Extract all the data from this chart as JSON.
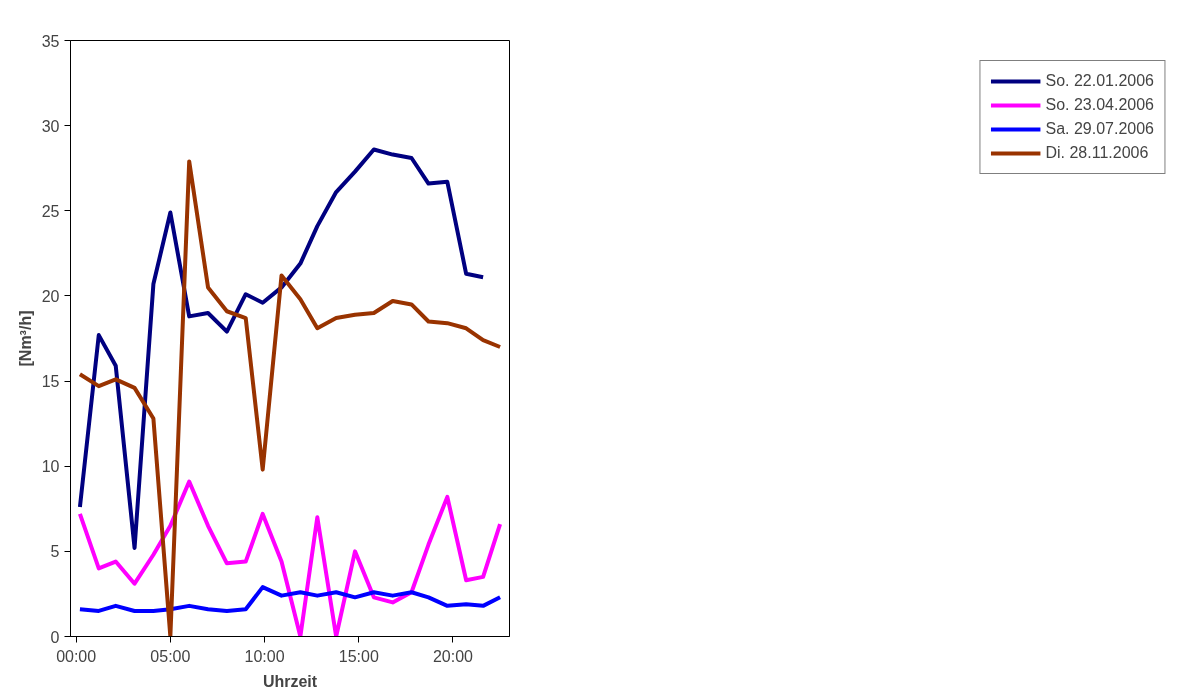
{
  "chart_data": {
    "type": "line",
    "xlabel": "Uhrzeit",
    "ylabel": "[Nm³/h]",
    "x": [
      0.2,
      1.2,
      2.1,
      3.1,
      4.1,
      5.0,
      6.0,
      7.0,
      8.0,
      9.0,
      9.9,
      10.9,
      11.9,
      12.8,
      13.8,
      14.8,
      15.8,
      16.8,
      17.8,
      18.7,
      19.7,
      20.7,
      21.6,
      22.5
    ],
    "xlim": [
      -0.3,
      23.0
    ],
    "xticks": [
      {
        "value": 0,
        "label": "00:00"
      },
      {
        "value": 5,
        "label": "05:00"
      },
      {
        "value": 10,
        "label": "10:00"
      },
      {
        "value": 15,
        "label": "15:00"
      },
      {
        "value": 20,
        "label": "20:00"
      }
    ],
    "ylim": [
      0,
      35
    ],
    "yticks": [
      0,
      5,
      10,
      15,
      20,
      25,
      30,
      35
    ],
    "grid": false,
    "legend": "right",
    "marker": "none",
    "line_style": "solid",
    "series": [
      {
        "name": "So. 22.01.2006",
        "color": "#000080",
        "values": [
          7.6,
          17.7,
          15.9,
          5.2,
          20.7,
          24.9,
          18.8,
          19.0,
          17.9,
          20.1,
          19.6,
          20.5,
          21.9,
          24.1,
          26.1,
          27.3,
          28.6,
          28.3,
          28.1,
          26.6,
          26.7,
          21.3,
          21.1,
          null
        ]
      },
      {
        "name": "So. 23.04.2006",
        "color": "#ff00ff",
        "values": [
          7.2,
          4.0,
          4.4,
          3.1,
          4.8,
          6.5,
          9.1,
          6.5,
          4.3,
          4.4,
          7.2,
          4.4,
          0,
          7.0,
          0,
          5.0,
          2.3,
          2.0,
          2.6,
          5.4,
          8.2,
          3.3,
          3.5,
          6.6
        ]
      },
      {
        "name": "Sa. 29.07.2006",
        "color": "#0000ff",
        "values": [
          1.6,
          1.5,
          1.8,
          1.5,
          1.5,
          1.6,
          1.8,
          1.6,
          1.5,
          1.6,
          2.9,
          2.4,
          2.6,
          2.4,
          2.6,
          2.3,
          2.6,
          2.4,
          2.6,
          2.3,
          1.8,
          1.9,
          1.8,
          2.3
        ]
      },
      {
        "name": "Di. 28.11.2006",
        "color": "#993300",
        "values": [
          15.4,
          14.7,
          15.1,
          14.6,
          12.8,
          0,
          27.9,
          20.5,
          19.1,
          18.7,
          9.8,
          21.2,
          19.8,
          18.1,
          18.7,
          18.9,
          19.0,
          19.7,
          19.5,
          18.5,
          18.4,
          18.1,
          17.4,
          17.0
        ]
      }
    ]
  }
}
